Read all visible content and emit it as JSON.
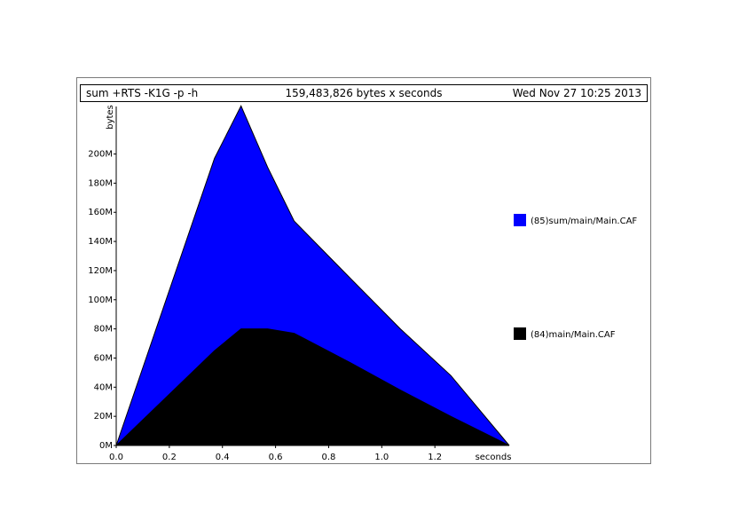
{
  "header": {
    "command": "sum +RTS -K1G -p -h",
    "total": "159,483,826 bytes x seconds",
    "date": "Wed Nov 27 10:25 2013"
  },
  "chart_data": {
    "type": "area",
    "stacked": true,
    "ylabel": "bytes",
    "xlabel": "seconds",
    "xlim": [
      0.0,
      1.48
    ],
    "ylim": [
      0,
      232
    ],
    "x_ticks": [
      "0.0",
      "0.2",
      "0.4",
      "0.6",
      "0.8",
      "1.0",
      "1.2"
    ],
    "y_ticks": [
      "0M",
      "20M",
      "40M",
      "60M",
      "80M",
      "100M",
      "120M",
      "140M",
      "160M",
      "180M",
      "200M"
    ],
    "y_tick_values": [
      0,
      20,
      40,
      60,
      80,
      100,
      120,
      140,
      160,
      180,
      200
    ],
    "x": [
      0.0,
      0.37,
      0.47,
      0.57,
      0.67,
      0.88,
      1.07,
      1.26,
      1.48
    ],
    "series": [
      {
        "name": "(84)main/Main.CAF",
        "color": "#000000",
        "values": [
          0,
          65,
          80,
          80,
          77,
          57,
          38,
          20,
          0
        ]
      },
      {
        "name": "(85)sum/main/Main.CAF",
        "color": "#0000ff",
        "values": [
          0,
          132,
          153,
          111,
          77,
          58,
          42,
          28,
          0
        ]
      }
    ],
    "legend_placement": "right"
  }
}
